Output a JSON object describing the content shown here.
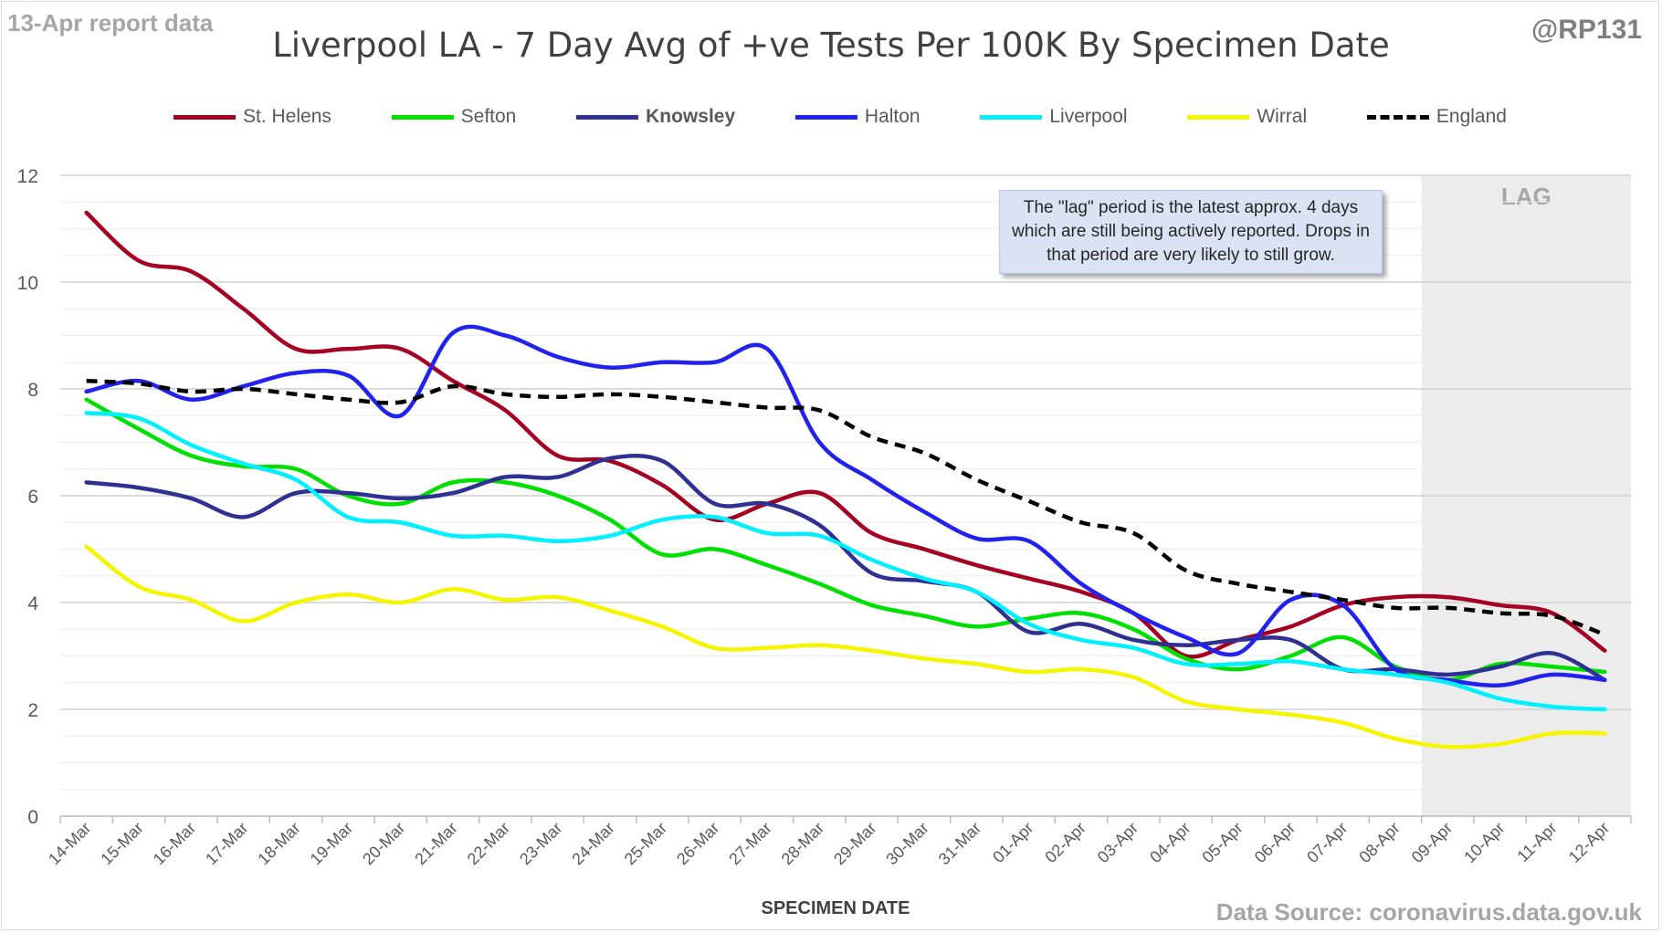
{
  "header": {
    "report_date": "13-Apr report data",
    "title": "Liverpool LA - 7 Day Avg of +ve Tests Per 100K By Specimen Date",
    "handle": "@RP131"
  },
  "footer": {
    "source": "Data Source: coronavirus.data.gov.uk"
  },
  "note": "The \"lag\" period is the latest approx. 4 days which are still being actively reported.  Drops in that period are very likely to still grow.",
  "chart_data": {
    "type": "line",
    "title": "Liverpool LA - 7 Day Avg of +ve Tests Per 100K By Specimen Date",
    "xlabel": "SPECIMEN DATE",
    "ylabel": "",
    "ylim": [
      0,
      12
    ],
    "yticks": [
      0,
      2,
      4,
      6,
      8,
      10,
      12
    ],
    "grid": true,
    "legend_position": "top",
    "lag_label": "LAG",
    "lag_start": "09-Apr",
    "categories": [
      "14-Mar",
      "15-Mar",
      "16-Mar",
      "17-Mar",
      "18-Mar",
      "19-Mar",
      "20-Mar",
      "21-Mar",
      "22-Mar",
      "23-Mar",
      "24-Mar",
      "25-Mar",
      "26-Mar",
      "27-Mar",
      "28-Mar",
      "29-Mar",
      "30-Mar",
      "31-Mar",
      "01-Apr",
      "02-Apr",
      "03-Apr",
      "04-Apr",
      "05-Apr",
      "06-Apr",
      "07-Apr",
      "08-Apr",
      "09-Apr",
      "10-Apr",
      "11-Apr",
      "12-Apr"
    ],
    "series": [
      {
        "name": "St. Helens",
        "color": "#a50021",
        "dashed": false,
        "bold": false,
        "values": [
          11.3,
          10.4,
          10.2,
          9.5,
          8.75,
          8.75,
          8.75,
          8.15,
          7.6,
          6.75,
          6.65,
          6.2,
          5.55,
          5.85,
          6.05,
          5.3,
          5.0,
          4.7,
          4.45,
          4.2,
          3.8,
          3.0,
          3.3,
          3.55,
          3.95,
          4.1,
          4.1,
          3.95,
          3.8,
          3.1
        ]
      },
      {
        "name": "Sefton",
        "color": "#00e000",
        "dashed": false,
        "bold": false,
        "values": [
          7.8,
          7.25,
          6.75,
          6.55,
          6.5,
          6.0,
          5.85,
          6.25,
          6.25,
          6.0,
          5.55,
          4.9,
          5.0,
          4.7,
          4.35,
          3.95,
          3.75,
          3.55,
          3.7,
          3.8,
          3.5,
          2.95,
          2.75,
          3.0,
          3.35,
          2.8,
          2.55,
          2.85,
          2.8,
          2.7
        ]
      },
      {
        "name": "Knowsley",
        "color": "#2e3192",
        "dashed": false,
        "bold": true,
        "values": [
          6.25,
          6.15,
          5.95,
          5.6,
          6.05,
          6.05,
          5.95,
          6.05,
          6.35,
          6.35,
          6.7,
          6.65,
          5.85,
          5.85,
          5.45,
          4.55,
          4.4,
          4.2,
          3.45,
          3.6,
          3.3,
          3.2,
          3.3,
          3.3,
          2.75,
          2.75,
          2.65,
          2.8,
          3.05,
          2.55
        ]
      },
      {
        "name": "Halton",
        "color": "#2222ee",
        "dashed": false,
        "bold": false,
        "values": [
          7.95,
          8.15,
          7.8,
          8.05,
          8.3,
          8.25,
          7.5,
          9.05,
          9.0,
          8.6,
          8.4,
          8.5,
          8.5,
          8.75,
          7.0,
          6.3,
          5.7,
          5.2,
          5.15,
          4.35,
          3.8,
          3.35,
          3.05,
          4.05,
          3.95,
          2.75,
          2.55,
          2.45,
          2.65,
          2.55
        ]
      },
      {
        "name": "Liverpool",
        "color": "#00f0ff",
        "dashed": false,
        "bold": false,
        "values": [
          7.55,
          7.45,
          6.95,
          6.6,
          6.3,
          5.6,
          5.5,
          5.25,
          5.25,
          5.15,
          5.25,
          5.55,
          5.6,
          5.3,
          5.25,
          4.8,
          4.45,
          4.2,
          3.6,
          3.3,
          3.15,
          2.85,
          2.85,
          2.9,
          2.75,
          2.65,
          2.5,
          2.2,
          2.05,
          2.0
        ]
      },
      {
        "name": "Wirral",
        "color": "#f5f500",
        "dashed": false,
        "bold": false,
        "values": [
          5.05,
          4.3,
          4.05,
          3.65,
          4.0,
          4.15,
          4.0,
          4.25,
          4.05,
          4.1,
          3.85,
          3.55,
          3.15,
          3.15,
          3.2,
          3.1,
          2.95,
          2.85,
          2.7,
          2.75,
          2.6,
          2.15,
          2.0,
          1.9,
          1.75,
          1.45,
          1.3,
          1.35,
          1.55,
          1.55
        ]
      },
      {
        "name": "England",
        "color": "#000000",
        "dashed": true,
        "bold": false,
        "values": [
          8.15,
          8.1,
          7.95,
          8.0,
          7.9,
          7.8,
          7.75,
          8.05,
          7.9,
          7.85,
          7.9,
          7.85,
          7.75,
          7.65,
          7.6,
          7.1,
          6.8,
          6.3,
          5.9,
          5.5,
          5.3,
          4.6,
          4.35,
          4.2,
          4.05,
          3.9,
          3.9,
          3.8,
          3.75,
          3.4
        ]
      }
    ]
  }
}
